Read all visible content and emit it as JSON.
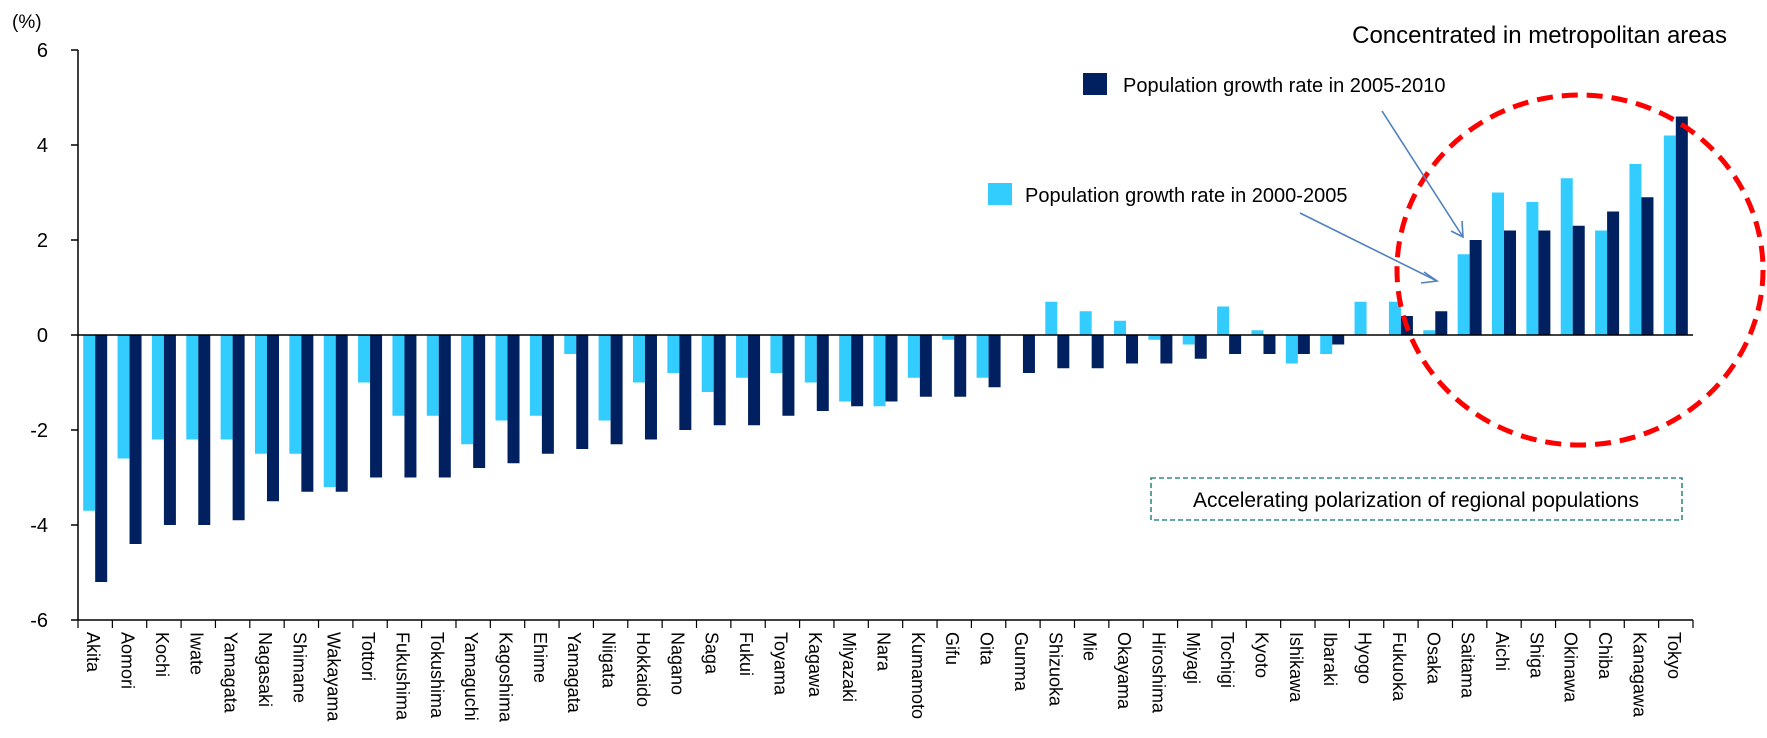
{
  "chart_data": {
    "type": "bar",
    "ylabel": "(%)",
    "ylim": [
      -6,
      6
    ],
    "yticks": [
      -6,
      -4,
      -2,
      0,
      2,
      4,
      6
    ],
    "grid": false,
    "categories": [
      "Akita",
      "Aomori",
      "Kochi",
      "Iwate",
      "Yamagata",
      "Nagasaki",
      "Shimane",
      "Wakayama",
      "Tottori",
      "Fukushima",
      "Tokushima",
      "Yamaguchi",
      "Kagoshima",
      "Ehime",
      "Yamagata",
      "Niigata",
      "Hokkaido",
      "Nagano",
      "Saga",
      "Fukui",
      "Toyama",
      "Kagawa",
      "Miyazaki",
      "Nara",
      "Kumamoto",
      "Gifu",
      "Oita",
      "Gunma",
      "Shizuoka",
      "Mie",
      "Okayama",
      "Hiroshima",
      "Miyagi",
      "Tochigi",
      "Kyoto",
      "Ishikawa",
      "Ibaraki",
      "Hyogo",
      "Fukuoka",
      "Osaka",
      "Saitama",
      "Aichi",
      "Shiga",
      "Okinawa",
      "Chiba",
      "Kanagawa",
      "Tokyo"
    ],
    "series": [
      {
        "name": "Population growth rate in 2000-2005",
        "color": "#33ccff",
        "values": [
          -3.7,
          -2.6,
          -2.2,
          -2.2,
          -2.2,
          -2.5,
          -2.5,
          -3.2,
          -1.0,
          -1.7,
          -1.7,
          -2.3,
          -1.8,
          -1.7,
          -0.4,
          -1.8,
          -1.0,
          -0.8,
          -1.2,
          -0.9,
          -0.8,
          -1.0,
          -1.4,
          -1.5,
          -0.9,
          -0.1,
          -0.9,
          0.0,
          0.7,
          0.5,
          0.3,
          -0.1,
          -0.2,
          0.6,
          0.1,
          -0.6,
          -0.4,
          0.7,
          0.7,
          0.1,
          1.7,
          3.0,
          2.8,
          3.3,
          2.2,
          3.6,
          4.2
        ]
      },
      {
        "name": "Population growth rate in 2005-2010",
        "color": "#002060",
        "values": [
          -5.2,
          -4.4,
          -4.0,
          -4.0,
          -3.9,
          -3.5,
          -3.3,
          -3.3,
          -3.0,
          -3.0,
          -3.0,
          -2.8,
          -2.7,
          -2.5,
          -2.4,
          -2.3,
          -2.2,
          -2.0,
          -1.9,
          -1.9,
          -1.7,
          -1.6,
          -1.5,
          -1.4,
          -1.3,
          -1.3,
          -1.1,
          -0.8,
          -0.7,
          -0.7,
          -0.6,
          -0.6,
          -0.5,
          -0.4,
          -0.4,
          -0.4,
          -0.2,
          0.0,
          0.4,
          0.5,
          2.0,
          2.2,
          2.2,
          2.3,
          2.6,
          2.9,
          4.6
        ]
      }
    ],
    "legend_placement": "top-right",
    "annotations": {
      "highlight_title": "Concentrated in metropolitan areas",
      "highlight_color": "#ff0000",
      "note": "Accelerating polarization of regional populations",
      "note_text_color": "#000066",
      "note_border_color": "#2e8b85",
      "arrow_color": "#4f81bd"
    }
  }
}
